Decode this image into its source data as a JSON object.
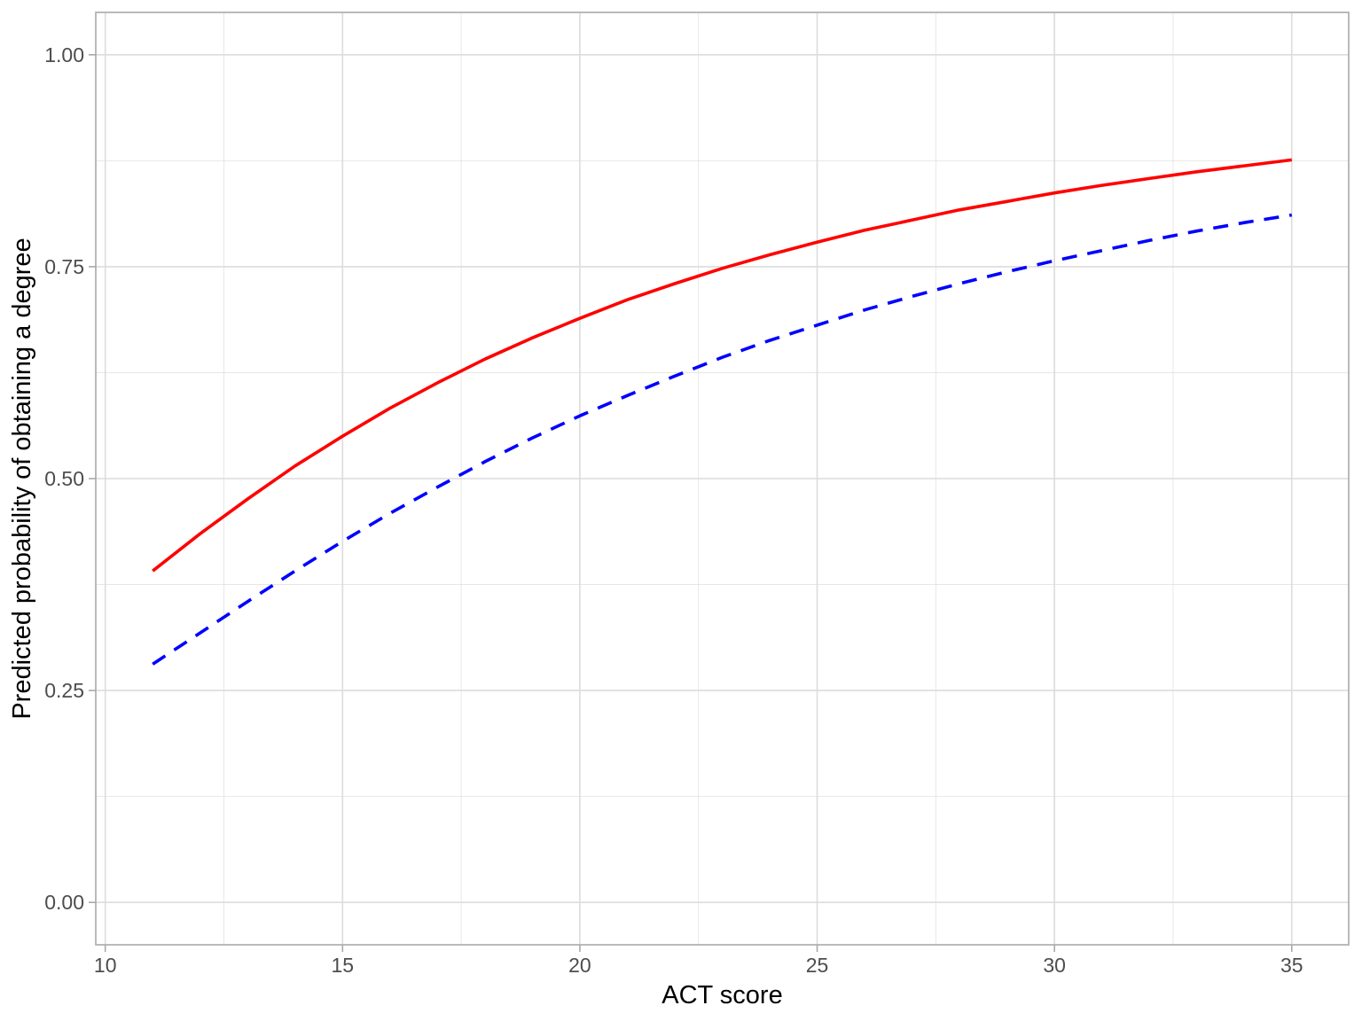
{
  "chart_data": {
    "type": "line",
    "title": "",
    "xlabel": "ACT score",
    "ylabel": "Predicted probability of obtaining a degree",
    "x": [
      11,
      12,
      13,
      14,
      15,
      16,
      17,
      18,
      19,
      20,
      21,
      22,
      23,
      24,
      25,
      26,
      27,
      28,
      29,
      30,
      31,
      32,
      33,
      34,
      35
    ],
    "series": [
      {
        "name": "red_solid_curve",
        "color": "#FF0000",
        "linestyle": "solid",
        "values": [
          0.391,
          0.435,
          0.476,
          0.515,
          0.55,
          0.583,
          0.613,
          0.641,
          0.666,
          0.689,
          0.711,
          0.73,
          0.748,
          0.764,
          0.779,
          0.793,
          0.805,
          0.817,
          0.827,
          0.837,
          0.846,
          0.854,
          0.862,
          0.869,
          0.876
        ]
      },
      {
        "name": "blue_dashed_curve",
        "color": "#0000FF",
        "linestyle": "dashed",
        "values": [
          0.281,
          0.318,
          0.355,
          0.391,
          0.426,
          0.459,
          0.49,
          0.52,
          0.548,
          0.574,
          0.598,
          0.621,
          0.643,
          0.663,
          0.681,
          0.699,
          0.715,
          0.73,
          0.744,
          0.757,
          0.769,
          0.781,
          0.792,
          0.802,
          0.811
        ]
      }
    ],
    "xlim": [
      9.8,
      36.2
    ],
    "ylim": [
      -0.05,
      1.05
    ],
    "x_ticks": [
      10,
      15,
      20,
      25,
      30,
      35
    ],
    "x_tick_labels": [
      "10",
      "15",
      "20",
      "25",
      "30",
      "35"
    ],
    "x_minor_ticks": [
      12.5,
      17.5,
      22.5,
      27.5,
      32.5
    ],
    "y_ticks": [
      0,
      0.25,
      0.5,
      0.75,
      1
    ],
    "y_tick_labels": [
      "0.00",
      "0.25",
      "0.50",
      "0.75",
      "1.00"
    ],
    "y_minor_ticks": [
      0.125,
      0.375,
      0.625,
      0.875
    ],
    "grid": true,
    "legend": "none",
    "theme": {
      "background": "#FFFFFF",
      "panel_background": "#FFFFFF",
      "panel_border": "#B3B3B3",
      "grid_major_color": "#DCDCDC",
      "grid_minor_color": "#E2E2E2",
      "tick_mark_color": "#A9A9A9",
      "tick_label_color": "#4D4D4D",
      "axis_title_color": "#000000"
    }
  }
}
